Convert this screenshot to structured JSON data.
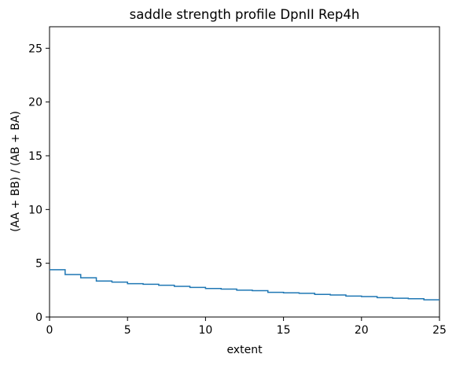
{
  "chart_data": {
    "type": "line",
    "drawstyle": "steps-post",
    "title": "saddle strength profile DpnII Rep4h",
    "xlabel": "extent",
    "ylabel": "(AA + BB) / (AB + BA)",
    "xlim": [
      0,
      25
    ],
    "ylim": [
      0,
      27
    ],
    "x_ticks": [
      0,
      5,
      10,
      15,
      20,
      25
    ],
    "y_ticks": [
      0,
      5,
      10,
      15,
      20,
      25
    ],
    "grid": false,
    "series": [
      {
        "color": "#1f77b4",
        "x": [
          0,
          1,
          2,
          3,
          4,
          5,
          6,
          7,
          8,
          9,
          10,
          11,
          12,
          13,
          14,
          15,
          16,
          17,
          18,
          19,
          20,
          21,
          22,
          23,
          24,
          25
        ],
        "y": [
          4.4,
          3.95,
          3.65,
          3.35,
          3.25,
          3.1,
          3.05,
          2.95,
          2.85,
          2.75,
          2.65,
          2.6,
          2.5,
          2.45,
          2.3,
          2.25,
          2.2,
          2.1,
          2.05,
          1.95,
          1.9,
          1.8,
          1.75,
          1.7,
          1.6,
          1.6
        ]
      }
    ]
  }
}
